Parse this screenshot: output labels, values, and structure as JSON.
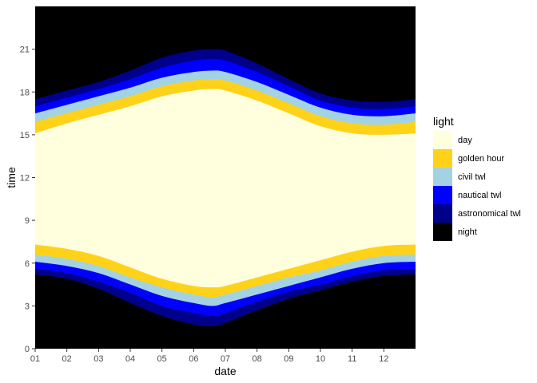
{
  "chart_data": {
    "type": "area",
    "xlabel": "date",
    "ylabel": "time",
    "x_tick_labels": [
      "01",
      "02",
      "03",
      "04",
      "05",
      "06",
      "07",
      "08",
      "09",
      "10",
      "11",
      "12"
    ],
    "y_ticks": [
      0,
      3,
      6,
      9,
      12,
      15,
      18,
      21
    ],
    "ylim": [
      0,
      24
    ],
    "xlim_months": [
      1,
      13
    ],
    "grid": false,
    "legend": {
      "title": "light",
      "placement": "right",
      "entries": [
        {
          "name": "day",
          "color": "#FFFFDD"
        },
        {
          "name": "golden hour",
          "color": "#FFD21A"
        },
        {
          "name": "civil twl",
          "color": "#A3D2E2"
        },
        {
          "name": "nautical twl",
          "color": "#0000FF"
        },
        {
          "name": "astronomical twl",
          "color": "#00008B"
        },
        {
          "name": "night",
          "color": "#000000"
        }
      ]
    },
    "x_months": [
      1,
      2,
      3,
      4,
      5,
      6,
      6.6,
      7,
      8,
      9,
      10,
      11,
      12,
      13
    ],
    "series": [
      {
        "name": "astronomical twl",
        "color": "#00008B",
        "lower": [
          5.2,
          4.9,
          4.2,
          3.2,
          2.3,
          1.7,
          1.6,
          1.8,
          2.7,
          3.5,
          4.1,
          4.7,
          5.1,
          5.2
        ],
        "upper": [
          17.5,
          18.1,
          18.7,
          19.5,
          20.4,
          20.9,
          21.0,
          20.9,
          20.0,
          18.9,
          17.9,
          17.4,
          17.3,
          17.5
        ]
      },
      {
        "name": "nautical twl",
        "color": "#0000FF",
        "lower": [
          5.6,
          5.3,
          4.7,
          3.9,
          3.0,
          2.5,
          2.3,
          2.5,
          3.3,
          4.0,
          4.5,
          5.1,
          5.5,
          5.6
        ],
        "upper": [
          17.0,
          17.6,
          18.2,
          18.9,
          19.7,
          20.2,
          20.3,
          20.2,
          19.4,
          18.4,
          17.4,
          16.9,
          16.8,
          17.0
        ]
      },
      {
        "name": "civil twl",
        "color": "#A3D2E2",
        "lower": [
          6.1,
          5.8,
          5.3,
          4.5,
          3.7,
          3.2,
          3.0,
          3.2,
          3.8,
          4.4,
          5.0,
          5.6,
          6.0,
          6.1
        ],
        "upper": [
          16.5,
          17.1,
          17.7,
          18.3,
          19.0,
          19.4,
          19.5,
          19.4,
          18.7,
          17.8,
          16.9,
          16.4,
          16.3,
          16.5
        ]
      },
      {
        "name": "golden hour",
        "color": "#FFD21A",
        "lower": [
          6.6,
          6.3,
          5.8,
          5.0,
          4.3,
          3.8,
          3.6,
          3.8,
          4.4,
          5.0,
          5.5,
          6.1,
          6.5,
          6.6
        ],
        "upper": [
          15.9,
          16.5,
          17.1,
          17.7,
          18.4,
          18.8,
          18.9,
          18.8,
          18.1,
          17.2,
          16.3,
          15.8,
          15.7,
          15.9
        ]
      },
      {
        "name": "day",
        "color": "#FFFFDD",
        "lower": [
          7.3,
          7.0,
          6.5,
          5.7,
          4.9,
          4.4,
          4.3,
          4.4,
          5.0,
          5.6,
          6.2,
          6.8,
          7.2,
          7.3
        ],
        "upper": [
          15.1,
          15.8,
          16.4,
          17.0,
          17.7,
          18.1,
          18.2,
          18.1,
          17.4,
          16.5,
          15.6,
          15.1,
          15.0,
          15.1
        ]
      }
    ]
  }
}
